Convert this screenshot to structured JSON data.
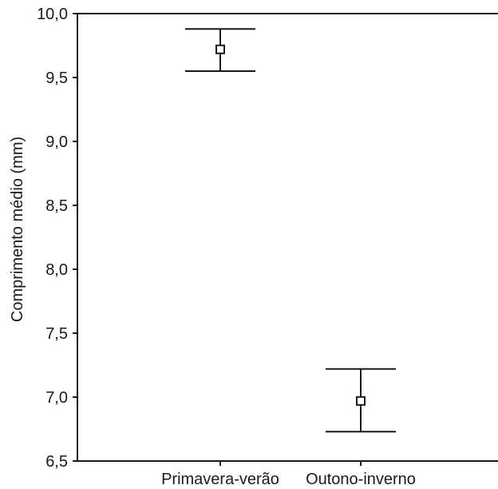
{
  "chart_data": {
    "type": "scatter",
    "categories": [
      "Primavera-verão",
      "Outono-inverno"
    ],
    "series": [
      {
        "points": [
          {
            "category": "Primavera-verão",
            "mean": 9.72,
            "lower": 9.55,
            "upper": 9.88
          },
          {
            "category": "Outono-inverno",
            "mean": 6.97,
            "lower": 6.73,
            "upper": 7.22
          }
        ]
      }
    ],
    "xlabel": "",
    "ylabel": "Comprimento médio (mm)",
    "ylim": [
      6.5,
      10.0
    ],
    "yticks": [
      "6,5",
      "7,0",
      "7,5",
      "8,0",
      "8,5",
      "9,0",
      "9,5",
      "10,0"
    ],
    "grid": false,
    "error_bars": true,
    "marker": "open-square",
    "colors": {
      "stroke": "#1a1a1a",
      "background": "#ffffff"
    }
  }
}
